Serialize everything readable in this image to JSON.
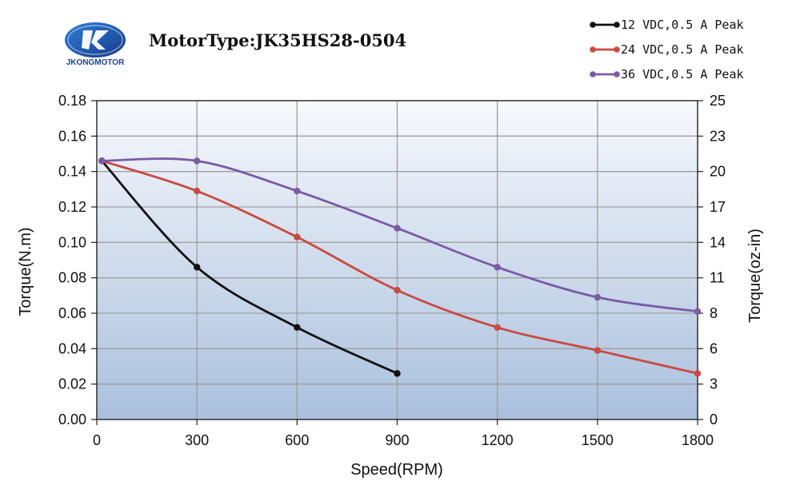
{
  "logo": {
    "text": "JKONGMOTOR",
    "color": "#1c3f8f"
  },
  "header": {
    "model_title": "MotorType:JK35HS28-0504"
  },
  "chart_data": {
    "type": "line",
    "title": "MotorType:JK35HS28-0504",
    "xlabel": "Speed(RPM)",
    "ylabel": "Torque(N.m)",
    "y2label": "Torque(oz-in)",
    "xlim": [
      0,
      1800
    ],
    "ylim": [
      0,
      0.18
    ],
    "y2lim": [
      0,
      25
    ],
    "x_ticks": [
      "0",
      "300",
      "600",
      "900",
      "1200",
      "1500",
      "1800"
    ],
    "y_ticks": [
      "0.00",
      "0.02",
      "0.04",
      "0.06",
      "0.08",
      "0.10",
      "0.12",
      "0.14",
      "0.16",
      "0.18"
    ],
    "y2_ticks": [
      "0",
      "3",
      "6",
      "8",
      "11",
      "14",
      "17",
      "20",
      "23",
      "25"
    ],
    "grid": true,
    "legend_position": "top-right",
    "series": [
      {
        "name": "12 VDC,0.5 A Peak",
        "color": "#111111",
        "points": [
          [
            15,
            0.146
          ],
          [
            300,
            0.086
          ],
          [
            600,
            0.052
          ],
          [
            900,
            0.026
          ]
        ]
      },
      {
        "name": "24 VDC,0.5 A Peak",
        "color": "#c94a43",
        "points": [
          [
            15,
            0.146
          ],
          [
            300,
            0.129
          ],
          [
            600,
            0.103
          ],
          [
            900,
            0.073
          ],
          [
            1200,
            0.052
          ],
          [
            1500,
            0.039
          ],
          [
            1800,
            0.026
          ]
        ]
      },
      {
        "name": "36 VDC,0.5 A Peak",
        "color": "#7b5aa6",
        "points": [
          [
            15,
            0.146
          ],
          [
            300,
            0.146
          ],
          [
            600,
            0.129
          ],
          [
            900,
            0.108
          ],
          [
            1200,
            0.086
          ],
          [
            1500,
            0.069
          ],
          [
            1800,
            0.061
          ]
        ]
      }
    ]
  }
}
